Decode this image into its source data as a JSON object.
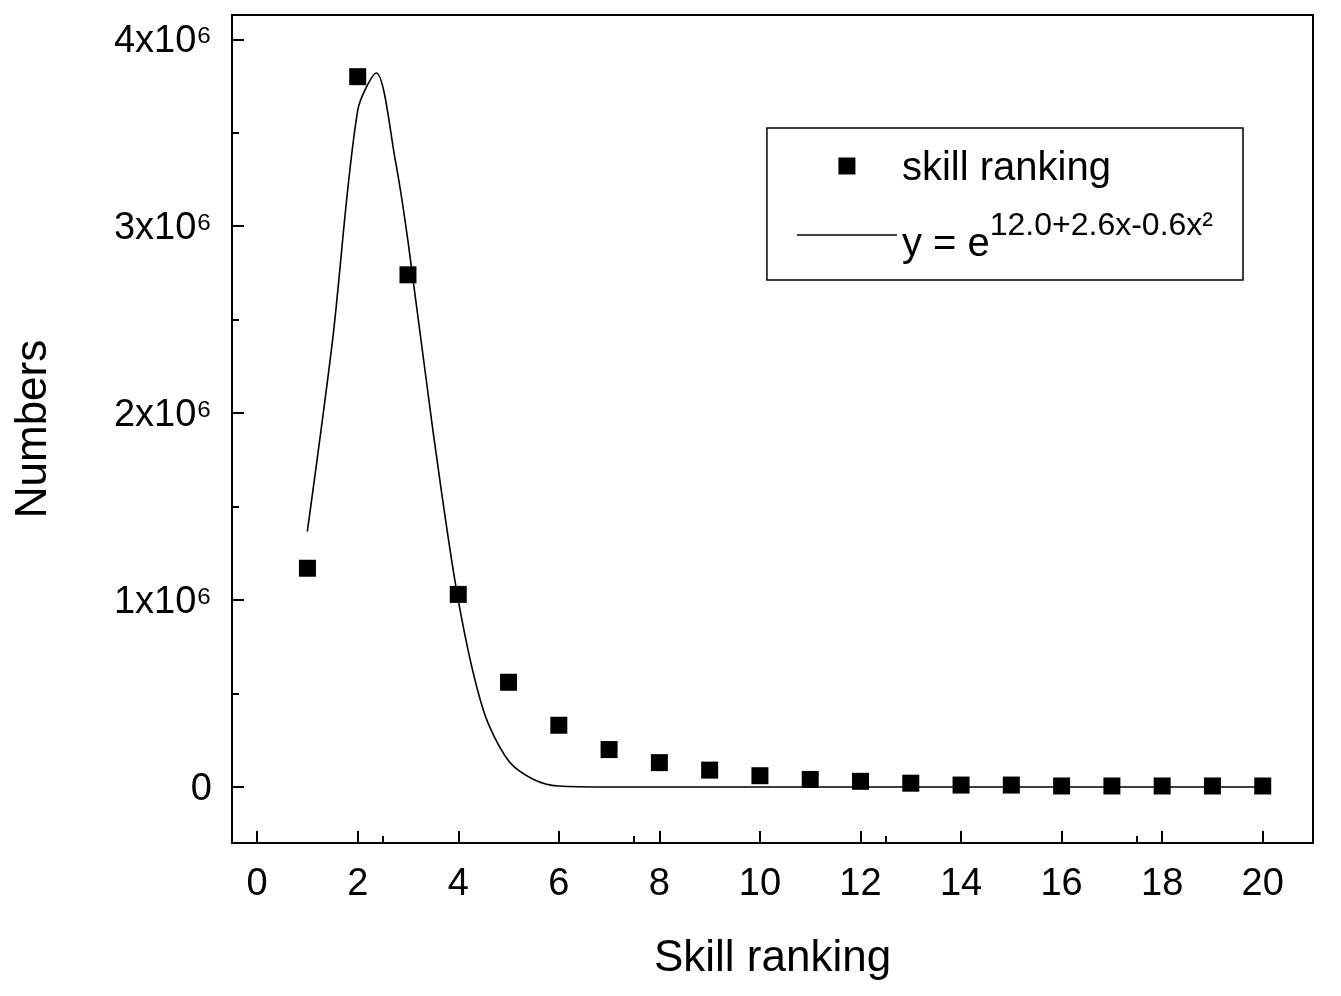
{
  "chart_data": {
    "type": "scatter",
    "xlabel": "Skill ranking",
    "ylabel": "Numbers",
    "xlim": [
      -0.5,
      21
    ],
    "xticks": [
      0,
      2,
      4,
      6,
      8,
      10,
      12,
      14,
      16,
      18,
      20
    ],
    "ylim": [
      -300000,
      4130000
    ],
    "yticks": [
      {
        "value": 0,
        "label": "0"
      },
      {
        "value": 1000000,
        "label": "1x10⁶"
      },
      {
        "value": 2000000,
        "label": "2x10⁶"
      },
      {
        "value": 3000000,
        "label": "3x10⁶"
      },
      {
        "value": 4000000,
        "label": "4x10⁶"
      }
    ],
    "grid": false,
    "legend": "top right",
    "series": [
      {
        "name": "skill ranking",
        "marker": "square",
        "color": "#000000",
        "x": [
          1,
          2,
          3,
          4,
          5,
          6,
          7,
          8,
          9,
          10,
          11,
          12,
          13,
          14,
          15,
          16,
          17,
          18,
          19,
          20
        ],
        "values": [
          1170000,
          3800000,
          2740000,
          1030000,
          560000,
          330000,
          200000,
          130000,
          90000,
          60000,
          40000,
          30000,
          20000,
          10000,
          10000,
          5000,
          5000,
          5000,
          5000,
          5000
        ]
      },
      {
        "name": "y = e$^{12.0+2.6x-0.6x²}$",
        "type": "line",
        "marker": "none",
        "line_style": "solid",
        "color": "#000000",
        "x": [
          1,
          1.5,
          2,
          2.37,
          2.75,
          3,
          3.5,
          4,
          4.5,
          5,
          5.5,
          6,
          7,
          10,
          15,
          20
        ],
        "values": [
          1370000,
          2390000,
          3620000,
          3820000,
          3350000,
          2920000,
          1900000,
          1000000,
          410000,
          140000,
          40000,
          5000,
          0,
          0,
          0,
          0
        ]
      }
    ]
  }
}
